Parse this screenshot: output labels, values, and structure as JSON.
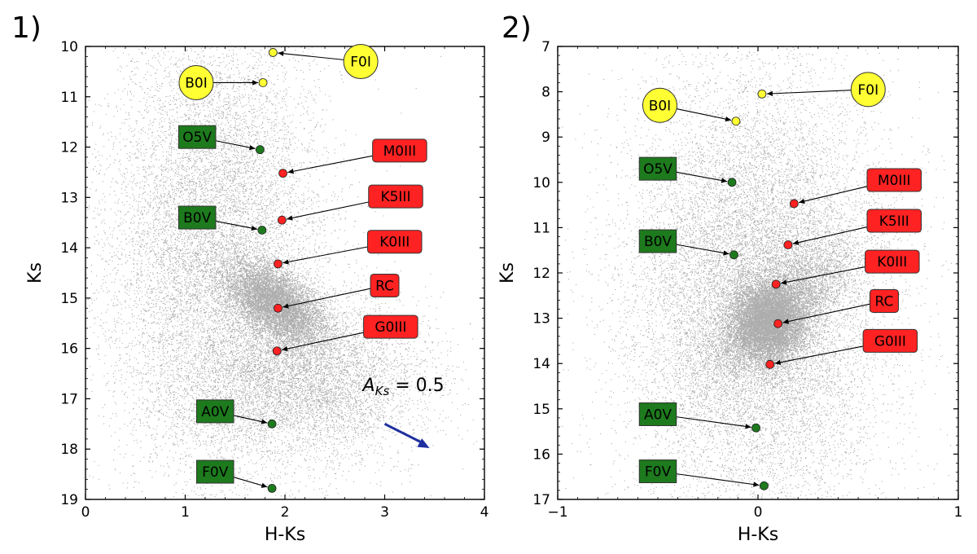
{
  "chart_data": [
    {
      "type": "scatter",
      "panel_label": "1)",
      "xlabel": "H-Ks",
      "ylabel": "Ks",
      "xlim": [
        0,
        4
      ],
      "ylim": [
        19,
        10
      ],
      "y_inverted": true,
      "xticks": [
        0,
        1,
        2,
        3,
        4
      ],
      "yticks": [
        10,
        11,
        12,
        13,
        14,
        15,
        16,
        17,
        18,
        19
      ],
      "grid": false,
      "background_cloud": {
        "color": "#000000",
        "components": [
          {
            "name": "main sequence",
            "x": 1.3,
            "y": 14.0,
            "sx": 0.55,
            "sy": 2.3,
            "weight": 0.45
          },
          {
            "name": "giant branch",
            "x": 1.9,
            "y": 15.1,
            "sx": 0.25,
            "sy": 0.35,
            "weight": 0.3,
            "slope": 0.9
          },
          {
            "name": "faint wedge",
            "x": 2.2,
            "y": 16.6,
            "sx": 0.6,
            "sy": 0.8,
            "weight": 0.25
          }
        ]
      },
      "markers": [
        {
          "label": "F0I",
          "x": 1.88,
          "y": 10.12,
          "color": "#ffff33",
          "class": "supergiant",
          "lx": 2.76,
          "ly": 10.3
        },
        {
          "label": "B0I",
          "x": 1.78,
          "y": 10.72,
          "color": "#ffff33",
          "class": "supergiant",
          "lx": 1.11,
          "ly": 10.72
        },
        {
          "label": "O5V",
          "x": 1.75,
          "y": 12.05,
          "color": "#1d7a1d",
          "class": "dwarf",
          "lx": 1.12,
          "ly": 11.8
        },
        {
          "label": "M0III",
          "x": 1.98,
          "y": 12.52,
          "color": "#ff2222",
          "class": "giant",
          "lx": 3.15,
          "ly": 12.07
        },
        {
          "label": "K5III",
          "x": 1.97,
          "y": 13.45,
          "color": "#ff2222",
          "class": "giant",
          "lx": 3.11,
          "ly": 12.98
        },
        {
          "label": "B0V",
          "x": 1.77,
          "y": 13.65,
          "color": "#1d7a1d",
          "class": "dwarf",
          "lx": 1.12,
          "ly": 13.4
        },
        {
          "label": "K0III",
          "x": 1.93,
          "y": 14.32,
          "color": "#ff2222",
          "class": "giant",
          "lx": 3.1,
          "ly": 13.88
        },
        {
          "label": "RC",
          "x": 1.93,
          "y": 15.2,
          "color": "#ff2222",
          "class": "giant",
          "lx": 3.0,
          "ly": 14.75
        },
        {
          "label": "G0III",
          "x": 1.92,
          "y": 16.05,
          "color": "#ff2222",
          "class": "giant",
          "lx": 3.06,
          "ly": 15.57
        },
        {
          "label": "A0V",
          "x": 1.87,
          "y": 17.5,
          "color": "#1d7a1d",
          "class": "dwarf",
          "lx": 1.3,
          "ly": 17.25
        },
        {
          "label": "F0V",
          "x": 1.87,
          "y": 18.78,
          "color": "#1d7a1d",
          "class": "dwarf",
          "lx": 1.3,
          "ly": 18.45
        }
      ],
      "reddening_vector": {
        "label": "A_{Ks} = 0.5",
        "label_parts": {
          "main": "A",
          "sub": "Ks",
          "rest": " = 0.5"
        },
        "x0": 3.0,
        "y0": 17.5,
        "x1": 3.45,
        "y1": 17.98,
        "color": "#1f2fa0"
      }
    },
    {
      "type": "scatter",
      "panel_label": "2)",
      "xlabel": "H-Ks",
      "ylabel": "Ks",
      "xlim": [
        -1,
        1
      ],
      "ylim": [
        17,
        7
      ],
      "y_inverted": true,
      "xticks": [
        -1,
        0,
        1
      ],
      "xtick_labels": [
        "−1",
        "0",
        "1"
      ],
      "yticks": [
        7,
        8,
        9,
        10,
        11,
        12,
        13,
        14,
        15,
        16,
        17
      ],
      "grid": false,
      "background_cloud": {
        "color": "#000000",
        "components": [
          {
            "name": "broad halo",
            "x": 0.0,
            "y": 12.5,
            "sx": 0.32,
            "sy": 2.4,
            "weight": 0.55
          },
          {
            "name": "core",
            "x": 0.05,
            "y": 13.1,
            "sx": 0.09,
            "sy": 0.45,
            "weight": 0.3
          },
          {
            "name": "diagonal arm",
            "x": 0.1,
            "y": 12.8,
            "sx": 0.18,
            "sy": 0.5,
            "weight": 0.15,
            "slope": -3.0
          }
        ]
      },
      "markers": [
        {
          "label": "F0I",
          "x": 0.02,
          "y": 8.05,
          "color": "#ffff33",
          "class": "supergiant",
          "lx": 0.55,
          "ly": 7.95
        },
        {
          "label": "B0I",
          "x": -0.11,
          "y": 8.65,
          "color": "#ffff33",
          "class": "supergiant",
          "lx": -0.49,
          "ly": 8.3
        },
        {
          "label": "O5V",
          "x": -0.13,
          "y": 10.0,
          "color": "#1d7a1d",
          "class": "dwarf",
          "lx": -0.5,
          "ly": 9.7
        },
        {
          "label": "M0III",
          "x": 0.18,
          "y": 10.47,
          "color": "#ff2222",
          "class": "giant",
          "lx": 0.68,
          "ly": 9.95
        },
        {
          "label": "K5III",
          "x": 0.15,
          "y": 11.38,
          "color": "#ff2222",
          "class": "giant",
          "lx": 0.68,
          "ly": 10.85
        },
        {
          "label": "B0V",
          "x": -0.12,
          "y": 11.6,
          "color": "#1d7a1d",
          "class": "dwarf",
          "lx": -0.5,
          "ly": 11.3
        },
        {
          "label": "K0III",
          "x": 0.09,
          "y": 12.25,
          "color": "#ff2222",
          "class": "giant",
          "lx": 0.67,
          "ly": 11.75
        },
        {
          "label": "RC",
          "x": 0.1,
          "y": 13.12,
          "color": "#ff2222",
          "class": "giant",
          "lx": 0.63,
          "ly": 12.62
        },
        {
          "label": "G0III",
          "x": 0.06,
          "y": 14.02,
          "color": "#ff2222",
          "class": "giant",
          "lx": 0.66,
          "ly": 13.5
        },
        {
          "label": "A0V",
          "x": -0.01,
          "y": 15.42,
          "color": "#1d7a1d",
          "class": "dwarf",
          "lx": -0.5,
          "ly": 15.12
        },
        {
          "label": "F0V",
          "x": 0.03,
          "y": 16.7,
          "color": "#1d7a1d",
          "class": "dwarf",
          "lx": -0.5,
          "ly": 16.38
        }
      ]
    }
  ]
}
